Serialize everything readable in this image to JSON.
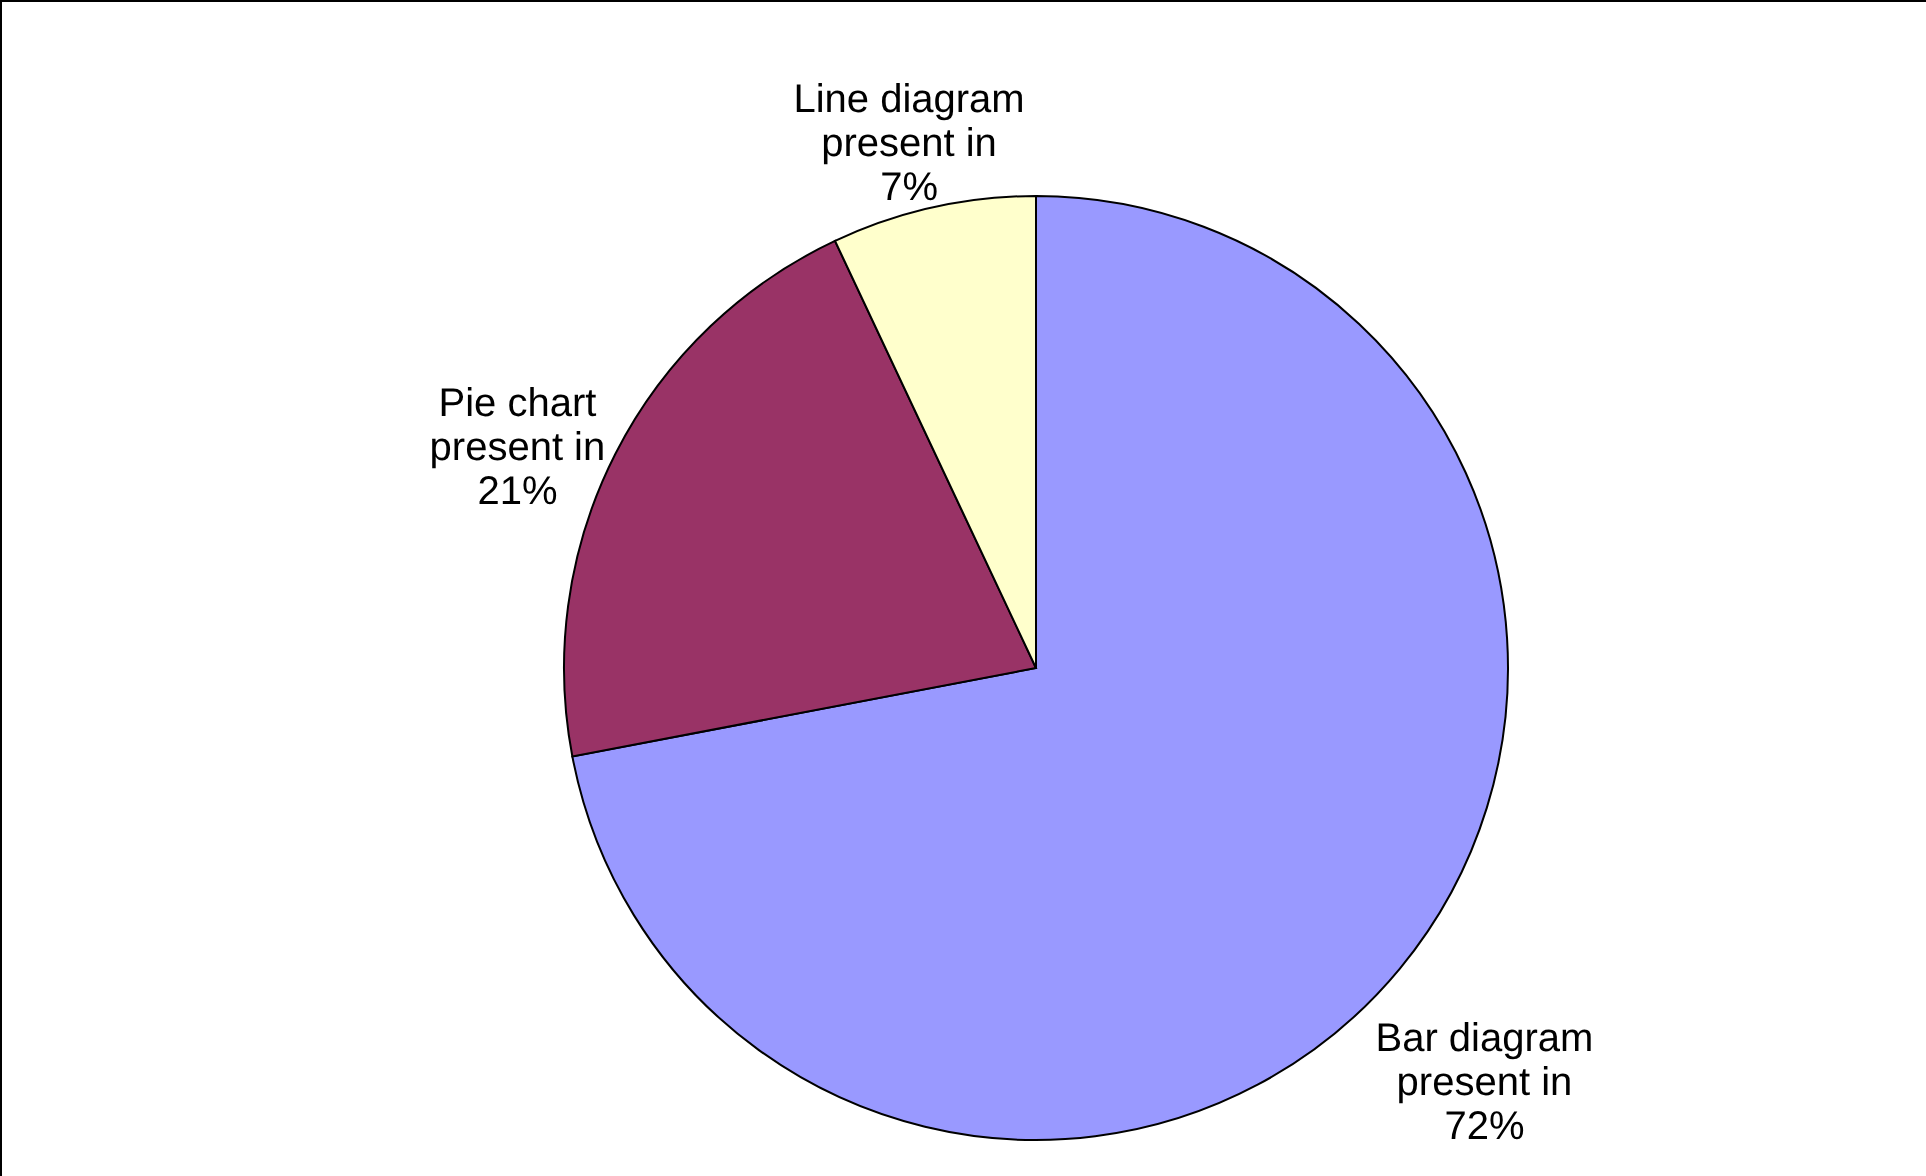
{
  "chart_data": {
    "type": "pie",
    "categories": [
      "Bar diagram present in",
      "Pie chart present in",
      "Line diagram present in"
    ],
    "values": [
      72,
      21,
      7
    ],
    "colors": [
      "#9999ff",
      "#993366",
      "#ffffcc"
    ],
    "value_labels": [
      "72%",
      "21%",
      "7%"
    ]
  }
}
